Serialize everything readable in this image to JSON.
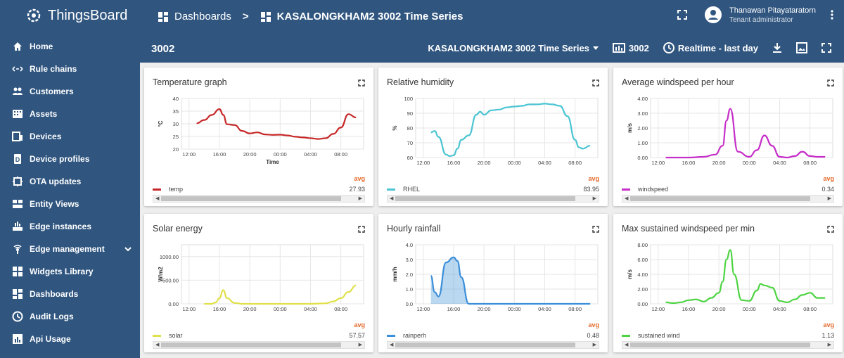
{
  "app": {
    "logo_text": "ThingsBoard"
  },
  "header": {
    "breadcrumb_root": "Dashboards",
    "breadcrumb_sep": ">",
    "breadcrumb_current": "KASALONGKHAM2 3002 Time Series",
    "user_name": "Thanawan Pitayataratorn",
    "user_role": "Tenant administrator"
  },
  "sidebar": {
    "items": [
      {
        "label": "Home",
        "icon": "home-icon"
      },
      {
        "label": "Rule chains",
        "icon": "rule-chain-icon"
      },
      {
        "label": "Customers",
        "icon": "customers-icon"
      },
      {
        "label": "Assets",
        "icon": "assets-icon"
      },
      {
        "label": "Devices",
        "icon": "devices-icon"
      },
      {
        "label": "Device profiles",
        "icon": "device-profile-icon"
      },
      {
        "label": "OTA updates",
        "icon": "ota-icon"
      },
      {
        "label": "Entity Views",
        "icon": "entity-views-icon"
      },
      {
        "label": "Edge instances",
        "icon": "edge-icon"
      },
      {
        "label": "Edge management",
        "icon": "edge-management-icon"
      },
      {
        "label": "Widgets Library",
        "icon": "widgets-icon"
      },
      {
        "label": "Dashboards",
        "icon": "dashboards-icon"
      },
      {
        "label": "Audit Logs",
        "icon": "audit-icon"
      },
      {
        "label": "Api Usage",
        "icon": "api-usage-icon"
      }
    ]
  },
  "toolbar": {
    "title": "3002",
    "dashboard_select": "KASALONGKHAM2 3002 Time Series",
    "entity_label": "3002",
    "timewindow": "Realtime - last day"
  },
  "colors": {
    "primary": "#305680",
    "avg": "#e46a2b"
  },
  "chart_data": [
    {
      "type": "line",
      "title": "Temperature graph",
      "xlabel": "Time",
      "ylabel": "°C",
      "ylim": [
        20,
        40
      ],
      "yticks": [
        "20",
        "25",
        "30",
        "35",
        "40"
      ],
      "xticks": [
        "12:00",
        "16:00",
        "20:00",
        "00:00",
        "04:00",
        "08:00"
      ],
      "x": [
        13,
        14,
        15,
        16,
        16.5,
        17,
        18,
        19,
        20,
        21,
        22,
        23,
        24,
        25,
        26,
        27,
        28,
        29,
        30,
        31,
        32,
        33,
        34
      ],
      "series": [
        {
          "name": "temp",
          "color": "#c62828",
          "avg_value": "27.93",
          "values": [
            30.2,
            31.5,
            33.5,
            35.8,
            33.5,
            29.8,
            29.5,
            27.2,
            26.2,
            26.6,
            25.8,
            25.6,
            25.7,
            25.4,
            24.9,
            24.6,
            24.3,
            24.0,
            24.3,
            26.0,
            28.5,
            33.8,
            32.5
          ]
        }
      ]
    },
    {
      "type": "line",
      "title": "Relative humidity",
      "xlabel": "",
      "ylabel": "%",
      "ylim": [
        60,
        100
      ],
      "yticks": [
        "60",
        "70",
        "80",
        "90",
        "100"
      ],
      "xticks": [
        "12:00",
        "16:00",
        "20:00",
        "00:00",
        "04:00",
        "08:00"
      ],
      "x": [
        13,
        13.5,
        14,
        15,
        15.5,
        16,
        16.5,
        17,
        18,
        19,
        19.5,
        20,
        21,
        22,
        23,
        24,
        25,
        26,
        27,
        28,
        29,
        30,
        31,
        32,
        32.5,
        33,
        34
      ],
      "series": [
        {
          "name": "RHEL",
          "color": "#4bc4d3",
          "avg_value": "83.95",
          "values": [
            77,
            78,
            74,
            62,
            61,
            61.5,
            66,
            72,
            75,
            89,
            91,
            89,
            92,
            92.5,
            94,
            94.5,
            95,
            96,
            96,
            96.5,
            96,
            95,
            88,
            72,
            67,
            66,
            68
          ]
        }
      ]
    },
    {
      "type": "line",
      "title": "Average windspeed per hour",
      "xlabel": "",
      "ylabel": "m/s",
      "ylim": [
        0,
        4
      ],
      "yticks": [
        "0.00",
        "1.00",
        "2.00",
        "3.00",
        "4.00"
      ],
      "xticks": [
        "12:00",
        "16:00",
        "20:00",
        "00:00",
        "04:00",
        "08:00"
      ],
      "x": [
        13,
        16,
        18,
        19.5,
        20.5,
        21,
        21.5,
        22.5,
        24,
        25,
        26,
        27,
        28,
        29,
        30,
        31,
        32,
        33,
        34
      ],
      "series": [
        {
          "name": "windspeed",
          "color": "#c52ec8",
          "avg_value": "0.34",
          "values": [
            0,
            0,
            0.05,
            0.2,
            0.8,
            2.5,
            3.3,
            0.4,
            0.05,
            0.5,
            1.5,
            0.8,
            0.05,
            0,
            0.1,
            0.4,
            0.1,
            0.05,
            0.05
          ]
        }
      ]
    },
    {
      "type": "line",
      "title": "Solar energy",
      "xlabel": "",
      "ylabel": "W/m2",
      "ylim": [
        0,
        1250
      ],
      "yticks": [
        "0.00",
        "500.00",
        "1000.00"
      ],
      "xticks": [
        "12:00",
        "16:00",
        "20:00",
        "00:00",
        "04:00",
        "08:00"
      ],
      "x": [
        14,
        15,
        15.5,
        16,
        16.5,
        17,
        18,
        19,
        20,
        24,
        28,
        30,
        31,
        32,
        33,
        34
      ],
      "series": [
        {
          "name": "solar",
          "color": "#e0e04a",
          "avg_value": "57.57",
          "values": [
            0,
            0,
            30,
            120,
            290,
            120,
            20,
            0,
            0,
            0,
            0,
            10,
            50,
            120,
            250,
            390
          ]
        }
      ]
    },
    {
      "type": "area",
      "title": "Hourly rainfall",
      "xlabel": "",
      "ylabel": "mm/h",
      "ylim": [
        0,
        4
      ],
      "yticks": [
        "0.0",
        "1.0",
        "2.0",
        "3.0",
        "4.0"
      ],
      "xticks": [
        "12:00",
        "16:00",
        "20:00",
        "00:00",
        "04:00",
        "08:00"
      ],
      "x": [
        13,
        13.5,
        14,
        15,
        16,
        16.5,
        17,
        18,
        20,
        24,
        28,
        32,
        34
      ],
      "series": [
        {
          "name": "rainperh",
          "color": "#3b8ed8",
          "avg_value": "0.48",
          "values": [
            1.9,
            0.8,
            0.5,
            2.8,
            3.15,
            2.9,
            1.8,
            0,
            0,
            0,
            0,
            0,
            0
          ]
        }
      ]
    },
    {
      "type": "line",
      "title": "Max sustained windspeed per min",
      "xlabel": "",
      "ylabel": "m/s",
      "ylim": [
        0,
        8
      ],
      "yticks": [
        "0.00",
        "2.00",
        "4.00",
        "6.00",
        "8.00"
      ],
      "xticks": [
        "12:00",
        "16:00",
        "20:00",
        "00:00",
        "04:00",
        "08:00"
      ],
      "x": [
        13,
        14,
        15,
        16,
        17,
        18,
        19,
        20,
        20.5,
        21,
        21.5,
        22,
        23,
        24,
        25,
        25.5,
        26,
        27,
        28,
        29,
        30,
        31,
        32,
        33,
        34
      ],
      "series": [
        {
          "name": "sustained wind",
          "color": "#4dd442",
          "avg_value": "1.13",
          "values": [
            0.2,
            0.1,
            0.2,
            0.5,
            0.6,
            0.3,
            0.8,
            1.5,
            3.0,
            6.0,
            7.3,
            4.0,
            0.5,
            0.4,
            1.8,
            2.7,
            2.5,
            2.2,
            0.4,
            0.2,
            0.6,
            1.2,
            1.5,
            0.8,
            0.8
          ]
        }
      ]
    }
  ]
}
